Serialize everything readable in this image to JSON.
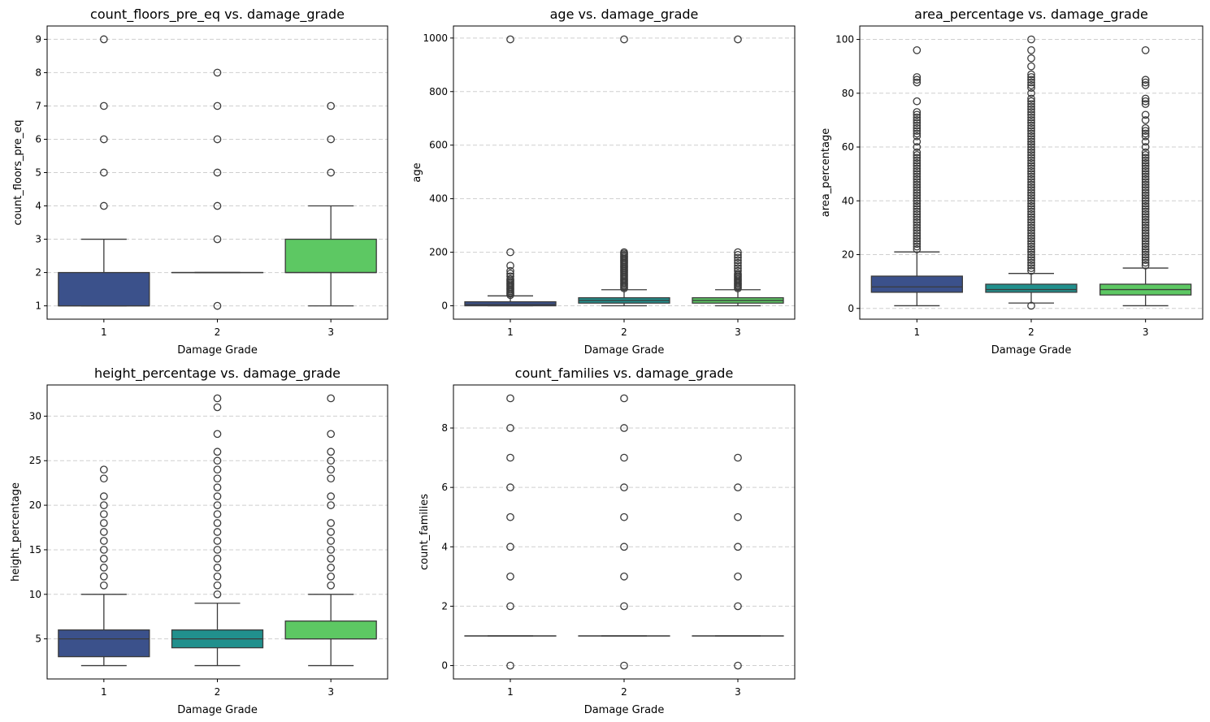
{
  "colors": {
    "grade_1": "#3b518b",
    "grade_2": "#21908d",
    "grade_3": "#5dc863",
    "line": "#3b3b3b"
  },
  "chart_data": [
    {
      "type": "box",
      "title": "count_floors_pre_eq vs. damage_grade",
      "xlabel": "Damage Grade",
      "ylabel": "count_floors_pre_eq",
      "categories": [
        "1",
        "2",
        "3"
      ],
      "ylim": [
        0.6,
        9.4
      ],
      "yticks": [
        1,
        2,
        3,
        4,
        5,
        6,
        7,
        8,
        9
      ],
      "grid": true,
      "boxes": [
        {
          "q1": 1,
          "median": 1,
          "q3": 2,
          "whislo": 1,
          "whishi": 3,
          "fliers": [
            4,
            5,
            6,
            7,
            9
          ]
        },
        {
          "q1": 2,
          "median": 2,
          "q3": 2,
          "whislo": 2,
          "whishi": 2,
          "fliers": [
            1,
            3,
            4,
            5,
            6,
            7,
            8
          ]
        },
        {
          "q1": 2,
          "median": 2,
          "q3": 3,
          "whislo": 1,
          "whishi": 4,
          "fliers": [
            5,
            6,
            7
          ]
        }
      ]
    },
    {
      "type": "box",
      "title": "age vs. damage_grade",
      "xlabel": "Damage Grade",
      "ylabel": "age",
      "categories": [
        "1",
        "2",
        "3"
      ],
      "ylim": [
        -50,
        1045
      ],
      "yticks": [
        0,
        200,
        400,
        600,
        800,
        1000
      ],
      "grid": true,
      "boxes": [
        {
          "q1": 0,
          "median": 5,
          "q3": 15,
          "whislo": 0,
          "whishi": 37,
          "fliers": [
            40,
            45,
            50,
            55,
            60,
            65,
            70,
            75,
            80,
            85,
            90,
            95,
            100,
            110,
            120,
            130,
            150,
            200,
            995
          ]
        },
        {
          "q1": 10,
          "median": 20,
          "q3": 30,
          "whislo": 0,
          "whishi": 60,
          "fliers": [
            65,
            70,
            75,
            80,
            85,
            90,
            95,
            100,
            105,
            110,
            115,
            120,
            125,
            130,
            135,
            140,
            145,
            150,
            155,
            160,
            165,
            170,
            175,
            180,
            185,
            190,
            195,
            200,
            995
          ]
        },
        {
          "q1": 10,
          "median": 20,
          "q3": 30,
          "whislo": 0,
          "whishi": 60,
          "fliers": [
            65,
            70,
            75,
            80,
            85,
            90,
            95,
            100,
            105,
            110,
            115,
            120,
            130,
            140,
            150,
            160,
            170,
            180,
            190,
            200,
            995
          ]
        }
      ]
    },
    {
      "type": "box",
      "title": "area_percentage vs. damage_grade",
      "xlabel": "Damage Grade",
      "ylabel": "area_percentage",
      "categories": [
        "1",
        "2",
        "3"
      ],
      "ylim": [
        -4,
        105
      ],
      "yticks": [
        0,
        20,
        40,
        60,
        80,
        100
      ],
      "grid": true,
      "boxes": [
        {
          "q1": 6,
          "median": 8,
          "q3": 12,
          "whislo": 1,
          "whishi": 21,
          "fliers": [
            22,
            23,
            24,
            25,
            26,
            27,
            28,
            29,
            30,
            31,
            32,
            33,
            34,
            35,
            36,
            37,
            38,
            39,
            40,
            41,
            42,
            43,
            44,
            45,
            46,
            47,
            48,
            49,
            50,
            51,
            52,
            53,
            54,
            55,
            56,
            57,
            58,
            60,
            62,
            64,
            65,
            66,
            67,
            68,
            69,
            70,
            71,
            72,
            73,
            77,
            84,
            85,
            86,
            96
          ]
        },
        {
          "q1": 6,
          "median": 7,
          "q3": 9,
          "whislo": 2,
          "whishi": 13,
          "fliers": [
            1,
            14,
            15,
            16,
            17,
            18,
            19,
            20,
            21,
            22,
            23,
            24,
            25,
            26,
            27,
            28,
            29,
            30,
            31,
            32,
            33,
            34,
            35,
            36,
            37,
            38,
            39,
            40,
            41,
            42,
            43,
            44,
            45,
            46,
            47,
            48,
            49,
            50,
            51,
            52,
            53,
            54,
            55,
            56,
            57,
            58,
            59,
            60,
            61,
            62,
            63,
            64,
            65,
            66,
            67,
            68,
            69,
            70,
            71,
            72,
            73,
            74,
            75,
            76,
            77,
            78,
            80,
            82,
            83,
            84,
            85,
            86,
            87,
            90,
            93,
            96,
            100
          ]
        },
        {
          "q1": 5,
          "median": 7,
          "q3": 9,
          "whislo": 1,
          "whishi": 15,
          "fliers": [
            16,
            17,
            18,
            19,
            20,
            21,
            22,
            23,
            24,
            25,
            26,
            27,
            28,
            29,
            30,
            31,
            32,
            33,
            34,
            35,
            36,
            37,
            38,
            39,
            40,
            41,
            42,
            43,
            44,
            45,
            46,
            47,
            48,
            49,
            50,
            51,
            52,
            53,
            54,
            55,
            56,
            57,
            58,
            60,
            62,
            64,
            65,
            66,
            67,
            70,
            72,
            76,
            77,
            78,
            83,
            84,
            85,
            96
          ]
        }
      ]
    },
    {
      "type": "box",
      "title": "height_percentage vs. damage_grade",
      "xlabel": "Damage Grade",
      "ylabel": "height_percentage",
      "categories": [
        "1",
        "2",
        "3"
      ],
      "ylim": [
        0.5,
        33.5
      ],
      "yticks": [
        5,
        10,
        15,
        20,
        25,
        30
      ],
      "grid": true,
      "boxes": [
        {
          "q1": 3,
          "median": 5,
          "q3": 6,
          "whislo": 2,
          "whishi": 10,
          "fliers": [
            11,
            12,
            13,
            14,
            15,
            16,
            17,
            18,
            19,
            20,
            21,
            23,
            24
          ]
        },
        {
          "q1": 4,
          "median": 5,
          "q3": 6,
          "whislo": 2,
          "whishi": 9,
          "fliers": [
            10,
            11,
            12,
            13,
            14,
            15,
            16,
            17,
            18,
            19,
            20,
            21,
            22,
            23,
            24,
            25,
            26,
            28,
            31,
            32
          ]
        },
        {
          "q1": 5,
          "median": 5,
          "q3": 7,
          "whislo": 2,
          "whishi": 10,
          "fliers": [
            11,
            12,
            13,
            14,
            15,
            16,
            17,
            18,
            20,
            21,
            23,
            24,
            25,
            26,
            28,
            32
          ]
        }
      ]
    },
    {
      "type": "box",
      "title": "count_families vs. damage_grade",
      "xlabel": "Damage Grade",
      "ylabel": "count_families",
      "categories": [
        "1",
        "2",
        "3"
      ],
      "ylim": [
        -0.45,
        9.45
      ],
      "yticks": [
        0,
        2,
        4,
        6,
        8
      ],
      "grid": true,
      "boxes": [
        {
          "q1": 1,
          "median": 1,
          "q3": 1,
          "whislo": 1,
          "whishi": 1,
          "fliers": [
            0,
            2,
            3,
            4,
            5,
            6,
            7,
            8,
            9
          ]
        },
        {
          "q1": 1,
          "median": 1,
          "q3": 1,
          "whislo": 1,
          "whishi": 1,
          "fliers": [
            0,
            2,
            3,
            4,
            5,
            6,
            7,
            8,
            9
          ]
        },
        {
          "q1": 1,
          "median": 1,
          "q3": 1,
          "whislo": 1,
          "whishi": 1,
          "fliers": [
            0,
            2,
            3,
            4,
            5,
            6,
            7
          ]
        }
      ]
    }
  ]
}
